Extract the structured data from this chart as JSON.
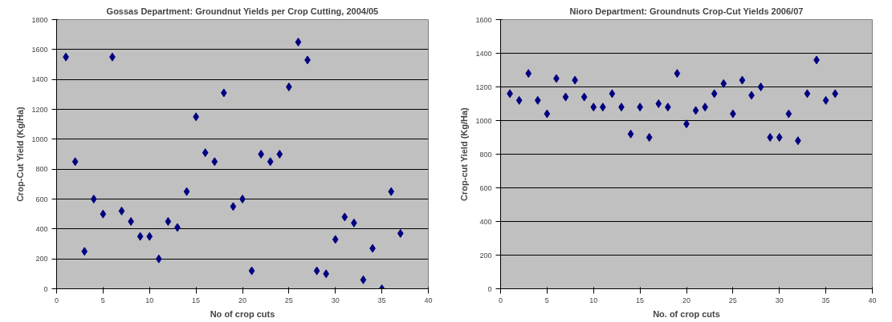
{
  "chart_data": [
    {
      "type": "scatter",
      "title": "Gossas Department: Groundnut Yields per Crop Cutting, 2004/05",
      "xlabel": "No of crop cuts",
      "ylabel": "Crop-Cut Yield (Kg/Ha)",
      "marker": "diamond",
      "grid": "y",
      "x": [
        1,
        2,
        3,
        4,
        5,
        6,
        7,
        8,
        9,
        10,
        11,
        12,
        13,
        14,
        15,
        16,
        17,
        18,
        19,
        20,
        21,
        22,
        23,
        24,
        25,
        26,
        27,
        28,
        29,
        30,
        31,
        32,
        33,
        34,
        35,
        36,
        37
      ],
      "series": [
        {
          "color": "#000080",
          "values": [
            1550,
            850,
            250,
            600,
            500,
            1550,
            520,
            450,
            350,
            350,
            200,
            450,
            410,
            650,
            1150,
            910,
            850,
            1310,
            550,
            600,
            120,
            900,
            850,
            900,
            1350,
            1650,
            1530,
            120,
            100,
            330,
            480,
            440,
            60,
            270,
            0,
            650,
            370
          ]
        }
      ],
      "xlim": [
        0,
        40
      ],
      "xticks": [
        0,
        5,
        10,
        15,
        20,
        25,
        30,
        35,
        40
      ],
      "ylim": [
        0,
        1800
      ],
      "yticks": [
        0,
        200,
        400,
        600,
        800,
        1000,
        1200,
        1400,
        1600,
        1800
      ]
    },
    {
      "type": "scatter",
      "title": "Nioro Department: Groundnuts Crop-Cut Yields 2006/07",
      "xlabel": "No. of crop cuts",
      "ylabel": "Crop-cut Yield (Kg/Ha)",
      "marker": "diamond",
      "grid": "y",
      "x": [
        1,
        2,
        3,
        4,
        5,
        6,
        7,
        8,
        9,
        10,
        11,
        12,
        13,
        14,
        15,
        16,
        17,
        18,
        19,
        20,
        21,
        22,
        23,
        24,
        25,
        26,
        27,
        28,
        29,
        30,
        31,
        32,
        33,
        34,
        35,
        36
      ],
      "series": [
        {
          "color": "#000080",
          "values": [
            1160,
            1120,
            1280,
            1120,
            1040,
            1250,
            1140,
            1240,
            1140,
            1080,
            1080,
            1160,
            1080,
            920,
            1080,
            900,
            1100,
            1080,
            1280,
            980,
            1060,
            1080,
            1160,
            1220,
            1040,
            1240,
            1150,
            1200,
            900,
            900,
            1040,
            880,
            1160,
            1360,
            1120,
            1160
          ]
        }
      ],
      "xlim": [
        0,
        40
      ],
      "xticks": [
        0,
        5,
        10,
        15,
        20,
        25,
        30,
        35,
        40
      ],
      "ylim": [
        0,
        1600
      ],
      "yticks": [
        0,
        200,
        400,
        600,
        800,
        1000,
        1200,
        1400,
        1600
      ]
    }
  ]
}
